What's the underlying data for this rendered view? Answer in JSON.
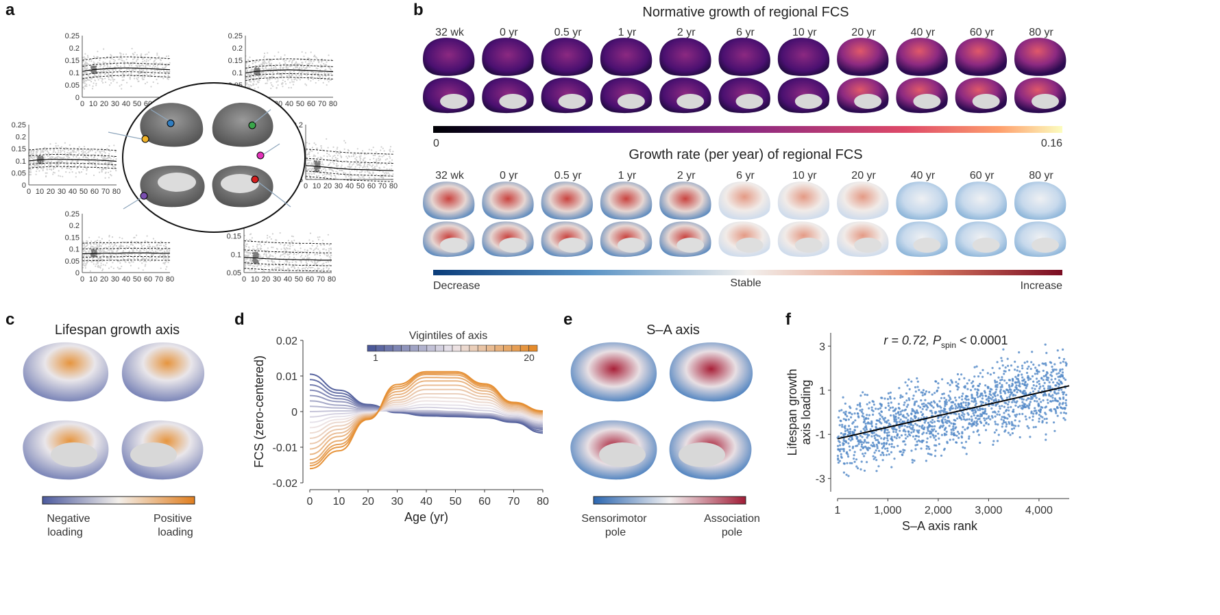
{
  "panels": {
    "a": {
      "letter": "a"
    },
    "b": {
      "letter": "b",
      "title_top": "Normative growth of regional FCS",
      "title_bottom": "Growth rate (per year) of regional FCS",
      "ages": [
        "32 wk",
        "0 yr",
        "0.5 yr",
        "1 yr",
        "2 yr",
        "6 yr",
        "10 yr",
        "20 yr",
        "40 yr",
        "60 yr",
        "80 yr"
      ],
      "cbar_top_min": "0",
      "cbar_top_max": "0.16",
      "cbar_bottom_left": "Decrease",
      "cbar_bottom_mid": "Stable",
      "cbar_bottom_right": "Increase"
    },
    "c": {
      "letter": "c",
      "title": "Lifespan growth axis",
      "cbar_left_1": "Negative",
      "cbar_left_2": "loading",
      "cbar_right_1": "Positive",
      "cbar_right_2": "loading",
      "colors": {
        "low": "#5a67a8",
        "high": "#e5872a"
      }
    },
    "d": {
      "letter": "d",
      "legend_title": "Vigintiles of axis",
      "legend_min": "1",
      "legend_max": "20"
    },
    "e": {
      "letter": "e",
      "title": "S–A axis",
      "cbar_left_1": "Sensorimotor",
      "cbar_left_2": "pole",
      "cbar_right_1": "Association",
      "cbar_right_2": "pole",
      "colors": {
        "low": "#2f6fb5",
        "high": "#a81e3a"
      }
    },
    "f": {
      "letter": "f",
      "annotation_r": "r = 0.72, P",
      "annotation_sub": "spin",
      "annotation_p": " < 0.0001"
    }
  },
  "chart_data": [
    {
      "id": "a-scatter",
      "type": "scatter",
      "x_ticks": [
        "0",
        "10",
        "20",
        "30",
        "40",
        "50",
        "60",
        "70",
        "80"
      ],
      "subplots": [
        {
          "y_ticks": [
            "0",
            "0.05",
            "0.1",
            "0.15",
            "0.2",
            "0.25"
          ],
          "median": [
            0.105,
            0.112,
            0.115,
            0.118,
            0.119,
            0.118,
            0.116,
            0.114,
            0.112
          ]
        },
        {
          "y_ticks": [
            "0",
            "0.05",
            "0.1",
            "0.15",
            "0.2",
            "0.25"
          ],
          "median": [
            0.098,
            0.105,
            0.108,
            0.11,
            0.111,
            0.11,
            0.108,
            0.106,
            0.104
          ]
        },
        {
          "y_ticks": [
            "0",
            "0.05",
            "0.1",
            "0.15",
            "0.2",
            "0.25"
          ],
          "median": [
            0.1,
            0.104,
            0.106,
            0.106,
            0.105,
            0.104,
            0.103,
            0.101,
            0.098
          ]
        },
        {
          "y_ticks": [
            "0.05",
            "0.1",
            "0.15",
            "0.2"
          ],
          "median": [
            0.088,
            0.086,
            0.083,
            0.08,
            0.078,
            0.077,
            0.076,
            0.075,
            0.074
          ]
        },
        {
          "y_ticks": [
            "0",
            "0.05",
            "0.1",
            "0.15",
            "0.2",
            "0.25"
          ],
          "median": [
            0.08,
            0.081,
            0.082,
            0.082,
            0.083,
            0.083,
            0.083,
            0.082,
            0.082
          ]
        },
        {
          "y_ticks": [
            "0.05",
            "0.1",
            "0.15",
            "0.2"
          ],
          "median": [
            0.092,
            0.09,
            0.088,
            0.087,
            0.086,
            0.085,
            0.085,
            0.084,
            0.084
          ]
        }
      ]
    },
    {
      "id": "d-lines",
      "type": "line",
      "xlabel": "Age (yr)",
      "ylabel": "FCS (zero-centered)",
      "x": [
        0,
        10,
        20,
        30,
        40,
        50,
        60,
        70,
        80
      ],
      "x_ticks": [
        "0",
        "10",
        "20",
        "30",
        "40",
        "50",
        "60",
        "70",
        "80"
      ],
      "y_ticks": [
        "-0.02",
        "-0.01",
        "0",
        "0.01",
        "0.02"
      ],
      "xlim": [
        0,
        80
      ],
      "ylim": [
        -0.02,
        0.02
      ],
      "series": [
        {
          "values": [
            0.0105,
            0.006,
            0.002,
            -0.0003,
            -0.0012,
            -0.0014,
            -0.0017,
            -0.003,
            -0.006
          ]
        },
        {
          "values": [
            0.009,
            0.0052,
            0.0018,
            -0.0002,
            -0.001,
            -0.0012,
            -0.0015,
            -0.0028,
            -0.0055
          ]
        },
        {
          "values": [
            0.0075,
            0.0044,
            0.0015,
            0.0,
            -0.0008,
            -0.001,
            -0.0013,
            -0.0026,
            -0.005
          ]
        },
        {
          "values": [
            0.006,
            0.0036,
            0.0012,
            0.0001,
            -0.0006,
            -0.0008,
            -0.0012,
            -0.0024,
            -0.0047
          ]
        },
        {
          "values": [
            0.0045,
            0.0028,
            0.001,
            0.0002,
            -0.0004,
            -0.0006,
            -0.001,
            -0.0022,
            -0.0044
          ]
        },
        {
          "values": [
            0.003,
            0.0018,
            0.0007,
            0.0002,
            -0.0002,
            -0.0004,
            -0.0008,
            -0.002,
            -0.004
          ]
        },
        {
          "values": [
            0.0015,
            0.001,
            0.0004,
            0.0002,
            0.0,
            -0.0002,
            -0.0006,
            -0.0018,
            -0.0037
          ]
        },
        {
          "values": [
            0.0,
            0.0002,
            0.0002,
            0.0003,
            0.0003,
            0.0,
            -0.0005,
            -0.0016,
            -0.0034
          ]
        },
        {
          "values": [
            -0.0015,
            -0.0006,
            0.0,
            0.0006,
            0.0012,
            0.0009,
            0.0003,
            -0.0012,
            -0.003
          ]
        },
        {
          "values": [
            -0.003,
            -0.0014,
            -0.0002,
            0.001,
            0.002,
            0.0018,
            0.001,
            -0.0008,
            -0.0026
          ]
        },
        {
          "values": [
            -0.0045,
            -0.0022,
            -0.0004,
            0.0015,
            0.003,
            0.0028,
            0.0018,
            -0.0004,
            -0.0022
          ]
        },
        {
          "values": [
            -0.006,
            -0.003,
            -0.0006,
            0.002,
            0.004,
            0.0038,
            0.0026,
            0.0,
            -0.0018
          ]
        },
        {
          "values": [
            -0.0075,
            -0.004,
            -0.0008,
            0.0026,
            0.005,
            0.005,
            0.0034,
            0.0004,
            -0.0014
          ]
        },
        {
          "values": [
            -0.009,
            -0.005,
            -0.001,
            0.0032,
            0.0062,
            0.0062,
            0.0042,
            0.0008,
            -0.001
          ]
        },
        {
          "values": [
            -0.0105,
            -0.006,
            -0.0012,
            0.004,
            0.0074,
            0.0074,
            0.005,
            0.0012,
            -0.0008
          ]
        },
        {
          "values": [
            -0.012,
            -0.007,
            -0.0014,
            0.0048,
            0.0086,
            0.0086,
            0.0058,
            0.0016,
            -0.0006
          ]
        },
        {
          "values": [
            -0.0135,
            -0.0082,
            -0.0016,
            0.0056,
            0.0096,
            0.0095,
            0.0065,
            0.002,
            -0.0004
          ]
        },
        {
          "values": [
            -0.0145,
            -0.0092,
            -0.0018,
            0.0064,
            0.0104,
            0.0103,
            0.007,
            0.0022,
            -0.0002
          ]
        },
        {
          "values": [
            -0.0152,
            -0.01,
            -0.002,
            0.007,
            0.0108,
            0.0108,
            0.0074,
            0.0024,
            0.0
          ]
        },
        {
          "values": [
            -0.016,
            -0.011,
            -0.0022,
            0.0076,
            0.0112,
            0.0112,
            0.0078,
            0.0026,
            0.0002
          ]
        }
      ]
    },
    {
      "id": "f-scatter",
      "type": "scatter",
      "xlabel": "S–A axis rank",
      "ylabel": "Lifespan growth axis loading",
      "x_ticks": [
        "1",
        "1,000",
        "2,000",
        "3,000",
        "4,000"
      ],
      "y_ticks": [
        "-3",
        "-1",
        "1",
        "3"
      ],
      "xlim": [
        1,
        4600
      ],
      "ylim": [
        -3.6,
        3.6
      ],
      "fit_line": {
        "x": [
          1,
          4600
        ],
        "y": [
          -1.2,
          1.2
        ]
      },
      "r": 0.72
    }
  ]
}
